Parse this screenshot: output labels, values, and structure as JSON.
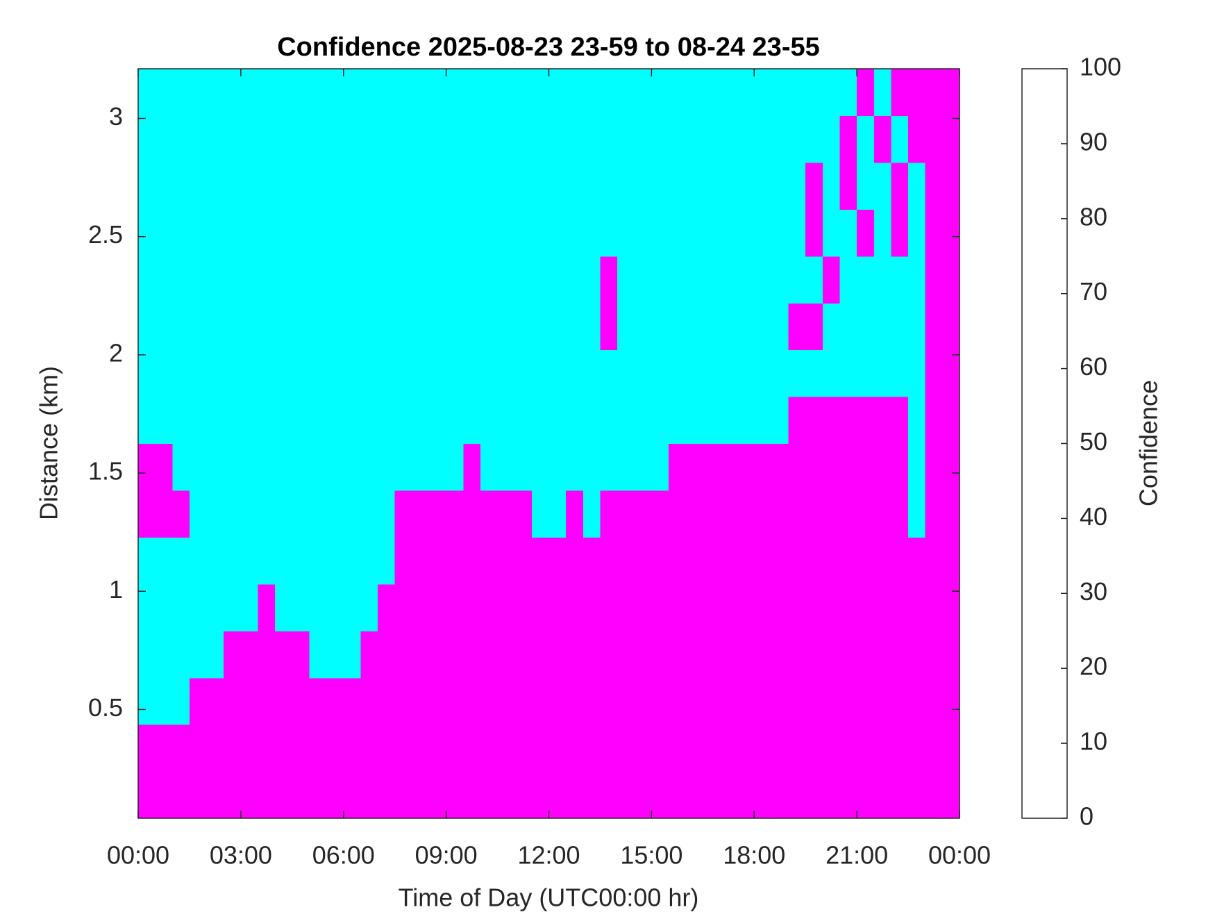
{
  "chart_data": {
    "type": "heatmap",
    "title": "Confidence 2025-08-23 23-59 to 08-24 23-55",
    "xlabel": "Time of Day (UTC00:00 hr)",
    "ylabel": "Distance (km)",
    "xlim": [
      0,
      24
    ],
    "xticks": [
      {
        "value": 0,
        "label": "00:00"
      },
      {
        "value": 3,
        "label": "03:00"
      },
      {
        "value": 6,
        "label": "06:00"
      },
      {
        "value": 9,
        "label": "09:00"
      },
      {
        "value": 12,
        "label": "12:00"
      },
      {
        "value": 15,
        "label": "15:00"
      },
      {
        "value": 18,
        "label": "18:00"
      },
      {
        "value": 21,
        "label": "21:00"
      },
      {
        "value": 24,
        "label": "00:00"
      }
    ],
    "ylim": [
      0.04,
      3.21
    ],
    "yticks": [
      0.5,
      1,
      1.5,
      2,
      2.5,
      3
    ],
    "colormap": [
      "#00ffff",
      "#ff00ff"
    ],
    "clim": [
      0,
      100
    ],
    "cticks": [
      0,
      10,
      20,
      30,
      40,
      50,
      60,
      70,
      80,
      90,
      100
    ],
    "colorbar_label": "Confidence",
    "z": [
      [
        100,
        100,
        100,
        100,
        100,
        100,
        100,
        100,
        100,
        100,
        100,
        100,
        100,
        100,
        100,
        100,
        100,
        100,
        100,
        100,
        100,
        100,
        100,
        100,
        100,
        100,
        100,
        100,
        100,
        100,
        100,
        100,
        100,
        100,
        100,
        100,
        100,
        100,
        100,
        100,
        100,
        100,
        100,
        100,
        100,
        100,
        100,
        100
      ],
      [
        100,
        100,
        100,
        100,
        100,
        100,
        100,
        100,
        100,
        100,
        100,
        100,
        100,
        100,
        100,
        100,
        100,
        100,
        100,
        100,
        100,
        100,
        100,
        100,
        100,
        100,
        100,
        100,
        100,
        100,
        100,
        100,
        100,
        100,
        100,
        100,
        100,
        100,
        100,
        100,
        100,
        100,
        100,
        100,
        100,
        100,
        100,
        100
      ],
      [
        0,
        0,
        0,
        100,
        100,
        100,
        100,
        100,
        100,
        100,
        100,
        100,
        100,
        100,
        100,
        100,
        100,
        100,
        100,
        100,
        100,
        100,
        100,
        100,
        100,
        100,
        100,
        100,
        100,
        100,
        100,
        100,
        100,
        100,
        100,
        100,
        100,
        100,
        100,
        100,
        100,
        100,
        100,
        100,
        100,
        100,
        100,
        100
      ],
      [
        0,
        0,
        0,
        0,
        0,
        100,
        100,
        100,
        100,
        100,
        0,
        0,
        0,
        100,
        100,
        100,
        100,
        100,
        100,
        100,
        100,
        100,
        100,
        100,
        100,
        100,
        100,
        100,
        100,
        100,
        100,
        100,
        100,
        100,
        100,
        100,
        100,
        100,
        100,
        100,
        100,
        100,
        100,
        100,
        100,
        100,
        100,
        100
      ],
      [
        0,
        0,
        0,
        0,
        0,
        0,
        0,
        100,
        0,
        0,
        0,
        0,
        0,
        0,
        100,
        100,
        100,
        100,
        100,
        100,
        100,
        100,
        100,
        100,
        100,
        100,
        100,
        100,
        100,
        100,
        100,
        100,
        100,
        100,
        100,
        100,
        100,
        100,
        100,
        100,
        100,
        100,
        100,
        100,
        100,
        100,
        100,
        100
      ],
      [
        0,
        0,
        0,
        0,
        0,
        0,
        0,
        0,
        0,
        0,
        0,
        0,
        0,
        0,
        0,
        100,
        100,
        100,
        100,
        100,
        100,
        100,
        100,
        100,
        100,
        100,
        100,
        100,
        100,
        100,
        100,
        100,
        100,
        100,
        100,
        100,
        100,
        100,
        100,
        100,
        100,
        100,
        100,
        100,
        100,
        100,
        100,
        100
      ],
      [
        100,
        100,
        100,
        0,
        0,
        0,
        0,
        0,
        0,
        0,
        0,
        0,
        0,
        0,
        0,
        100,
        100,
        100,
        100,
        100,
        100,
        100,
        100,
        0,
        0,
        100,
        0,
        100,
        100,
        100,
        100,
        100,
        100,
        100,
        100,
        100,
        100,
        100,
        100,
        100,
        100,
        100,
        100,
        100,
        100,
        0,
        100,
        100
      ],
      [
        100,
        100,
        0,
        0,
        0,
        0,
        0,
        0,
        0,
        0,
        0,
        0,
        0,
        0,
        0,
        0,
        0,
        0,
        0,
        100,
        0,
        0,
        0,
        0,
        0,
        0,
        0,
        0,
        0,
        0,
        0,
        100,
        100,
        100,
        100,
        100,
        100,
        100,
        100,
        100,
        100,
        100,
        100,
        100,
        100,
        0,
        100,
        100
      ],
      [
        0,
        0,
        0,
        0,
        0,
        0,
        0,
        0,
        0,
        0,
        0,
        0,
        0,
        0,
        0,
        0,
        0,
        0,
        0,
        0,
        0,
        0,
        0,
        0,
        0,
        0,
        0,
        0,
        0,
        0,
        0,
        0,
        0,
        0,
        0,
        0,
        0,
        0,
        100,
        100,
        100,
        100,
        100,
        100,
        100,
        0,
        100,
        100
      ],
      [
        0,
        0,
        0,
        0,
        0,
        0,
        0,
        0,
        0,
        0,
        0,
        0,
        0,
        0,
        0,
        0,
        0,
        0,
        0,
        0,
        0,
        0,
        0,
        0,
        0,
        0,
        0,
        0,
        0,
        0,
        0,
        0,
        0,
        0,
        0,
        0,
        0,
        0,
        0,
        0,
        0,
        0,
        0,
        0,
        0,
        0,
        100,
        100
      ],
      [
        0,
        0,
        0,
        0,
        0,
        0,
        0,
        0,
        0,
        0,
        0,
        0,
        0,
        0,
        0,
        0,
        0,
        0,
        0,
        0,
        0,
        0,
        0,
        0,
        0,
        0,
        0,
        100,
        0,
        0,
        0,
        0,
        0,
        0,
        0,
        0,
        0,
        0,
        100,
        100,
        0,
        0,
        0,
        0,
        0,
        0,
        100,
        100
      ],
      [
        0,
        0,
        0,
        0,
        0,
        0,
        0,
        0,
        0,
        0,
        0,
        0,
        0,
        0,
        0,
        0,
        0,
        0,
        0,
        0,
        0,
        0,
        0,
        0,
        0,
        0,
        0,
        100,
        0,
        0,
        0,
        0,
        0,
        0,
        0,
        0,
        0,
        0,
        0,
        0,
        100,
        0,
        0,
        0,
        0,
        0,
        100,
        100
      ],
      [
        0,
        0,
        0,
        0,
        0,
        0,
        0,
        0,
        0,
        0,
        0,
        0,
        0,
        0,
        0,
        0,
        0,
        0,
        0,
        0,
        0,
        0,
        0,
        0,
        0,
        0,
        0,
        0,
        0,
        0,
        0,
        0,
        0,
        0,
        0,
        0,
        0,
        0,
        0,
        100,
        0,
        0,
        100,
        0,
        100,
        0,
        100,
        100
      ],
      [
        0,
        0,
        0,
        0,
        0,
        0,
        0,
        0,
        0,
        0,
        0,
        0,
        0,
        0,
        0,
        0,
        0,
        0,
        0,
        0,
        0,
        0,
        0,
        0,
        0,
        0,
        0,
        0,
        0,
        0,
        0,
        0,
        0,
        0,
        0,
        0,
        0,
        0,
        0,
        100,
        0,
        100,
        0,
        0,
        100,
        0,
        100,
        100
      ],
      [
        0,
        0,
        0,
        0,
        0,
        0,
        0,
        0,
        0,
        0,
        0,
        0,
        0,
        0,
        0,
        0,
        0,
        0,
        0,
        0,
        0,
        0,
        0,
        0,
        0,
        0,
        0,
        0,
        0,
        0,
        0,
        0,
        0,
        0,
        0,
        0,
        0,
        0,
        0,
        0,
        0,
        100,
        0,
        100,
        0,
        100,
        100,
        100
      ],
      [
        0,
        0,
        0,
        0,
        0,
        0,
        0,
        0,
        0,
        0,
        0,
        0,
        0,
        0,
        0,
        0,
        0,
        0,
        0,
        0,
        0,
        0,
        0,
        0,
        0,
        0,
        0,
        0,
        0,
        0,
        0,
        0,
        0,
        0,
        0,
        0,
        0,
        0,
        0,
        0,
        0,
        0,
        100,
        0,
        100,
        100,
        100,
        100
      ]
    ]
  }
}
